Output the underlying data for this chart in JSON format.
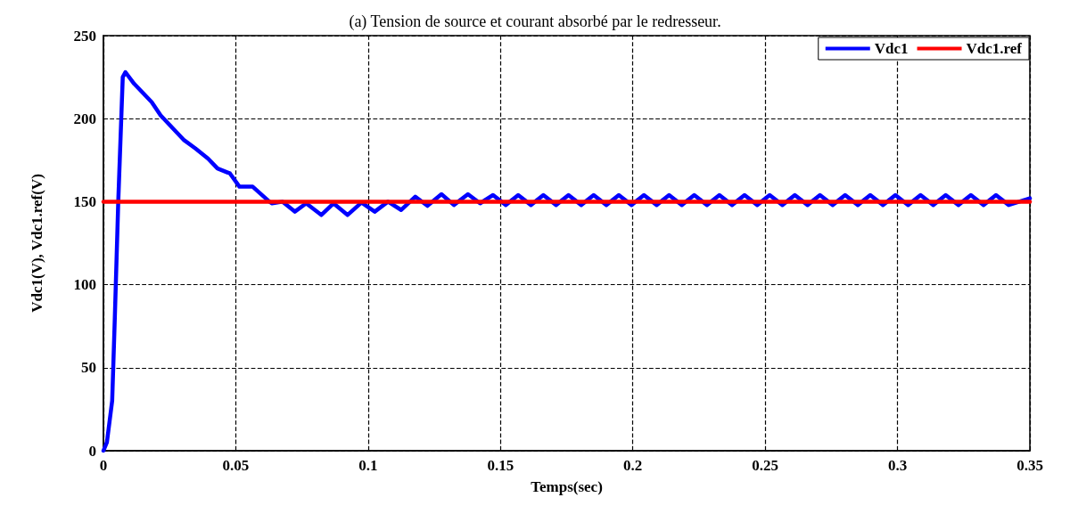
{
  "chart_data": {
    "type": "line",
    "title": "(a) Tension de source et courant absorbé par le redresseur.",
    "xlabel": "Temps(sec)",
    "ylabel": "Vdc1(V), Vdc1.ref(V)",
    "xlim": [
      0,
      0.35
    ],
    "xticks": [
      0,
      0.05,
      0.1,
      0.15,
      0.2,
      0.25,
      0.3,
      0.35
    ],
    "ylim": [
      0,
      250
    ],
    "yticks": [
      0,
      50,
      100,
      150,
      200,
      250
    ],
    "grid": true,
    "legend": "top right",
    "marker": "none",
    "line_style": "solid",
    "series": [
      {
        "name": "Vdc1",
        "color": "#0000ff",
        "x": [
          0,
          0.0013,
          0.0033,
          0.0043,
          0.0056,
          0.0073,
          0.0083,
          0.0116,
          0.0182,
          0.0216,
          0.0305,
          0.0348,
          0.0395,
          0.0431,
          0.0478,
          0.0514,
          0.0564,
          0.0627,
          0.0637,
          0.0677,
          0.0723,
          0.0766,
          0.0823,
          0.0869,
          0.0922,
          0.0975,
          0.1025,
          0.1075,
          0.1125,
          0.1178,
          0.1224,
          0.1277,
          0.1324,
          0.1377,
          0.1423,
          0.1472,
          0.152,
          0.1567,
          0.1615,
          0.1662,
          0.171,
          0.1757,
          0.1805,
          0.1852,
          0.19,
          0.1947,
          0.1995,
          0.2042,
          0.209,
          0.2137,
          0.2185,
          0.2232,
          0.228,
          0.2327,
          0.2375,
          0.2422,
          0.247,
          0.2517,
          0.2565,
          0.2612,
          0.266,
          0.2707,
          0.2755,
          0.2802,
          0.285,
          0.2897,
          0.2945,
          0.2992,
          0.304,
          0.3087,
          0.3135,
          0.3182,
          0.323,
          0.3277,
          0.3325,
          0.3372,
          0.342,
          0.35
        ],
        "values": [
          0,
          5,
          30,
          80,
          150,
          225,
          228,
          221,
          210,
          202,
          187,
          182,
          176,
          170,
          167,
          159,
          159,
          150,
          149,
          150,
          144,
          149,
          142,
          149,
          142,
          149.5,
          144,
          150,
          145,
          153,
          147.5,
          154.5,
          148,
          154.5,
          149,
          154,
          148,
          154,
          148,
          154,
          148,
          154,
          148,
          154,
          148,
          154,
          148,
          154,
          148,
          154,
          148,
          154,
          148,
          154,
          148,
          154,
          148,
          154,
          148,
          154,
          148,
          154,
          148,
          154,
          148,
          154,
          148,
          154,
          148,
          154,
          148,
          154,
          148,
          154,
          148,
          154,
          148,
          152
        ]
      },
      {
        "name": "Vdc1.ref",
        "color": "#ff0000",
        "x": [
          0,
          0.35
        ],
        "values": [
          150,
          150
        ]
      }
    ]
  }
}
